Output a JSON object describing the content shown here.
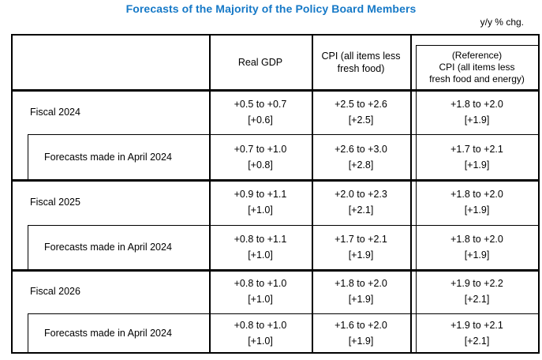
{
  "title": "Forecasts of the Majority of the Policy Board Members",
  "unit_note": "y/y % chg.",
  "colors": {
    "title_blue": "#1679C7",
    "border": "#000000",
    "background": "#ffffff"
  },
  "table": {
    "header": {
      "real_gdp": "Real GDP",
      "cpi_line1": "CPI (all items less",
      "cpi_line2": "fresh food)",
      "ref_line1": "(Reference)",
      "ref_line2": "CPI (all items less",
      "ref_line3": "fresh food and energy)"
    },
    "rows": [
      {
        "label": "Fiscal 2024",
        "gdp_range": "+0.5 to +0.7",
        "gdp_median": "[+0.6]",
        "cpi_range": "+2.5 to +2.6",
        "cpi_median": "[+2.5]",
        "ref_range": "+1.8 to +2.0",
        "ref_median": "[+1.9]"
      },
      {
        "label": "Forecasts made in April 2024",
        "gdp_range": "+0.7 to +1.0",
        "gdp_median": "[+0.8]",
        "cpi_range": "+2.6 to +3.0",
        "cpi_median": "[+2.8]",
        "ref_range": "+1.7 to +2.1",
        "ref_median": "[+1.9]"
      },
      {
        "label": "Fiscal 2025",
        "gdp_range": "+0.9 to +1.1",
        "gdp_median": "[+1.0]",
        "cpi_range": "+2.0 to +2.3",
        "cpi_median": "[+2.1]",
        "ref_range": "+1.8 to +2.0",
        "ref_median": "[+1.9]"
      },
      {
        "label": "Forecasts made in April 2024",
        "gdp_range": "+0.8 to +1.1",
        "gdp_median": "[+1.0]",
        "cpi_range": "+1.7 to +2.1",
        "cpi_median": "[+1.9]",
        "ref_range": "+1.8 to +2.0",
        "ref_median": "[+1.9]"
      },
      {
        "label": "Fiscal 2026",
        "gdp_range": "+0.8 to +1.0",
        "gdp_median": "[+1.0]",
        "cpi_range": "+1.8 to +2.0",
        "cpi_median": "[+1.9]",
        "ref_range": "+1.9 to +2.2",
        "ref_median": "[+2.1]"
      },
      {
        "label": "Forecasts made in April 2024",
        "gdp_range": "+0.8 to +1.0",
        "gdp_median": "[+1.0]",
        "cpi_range": "+1.6 to +2.0",
        "cpi_median": "[+1.9]",
        "ref_range": "+1.9 to +2.1",
        "ref_median": "[+2.1]"
      }
    ]
  }
}
